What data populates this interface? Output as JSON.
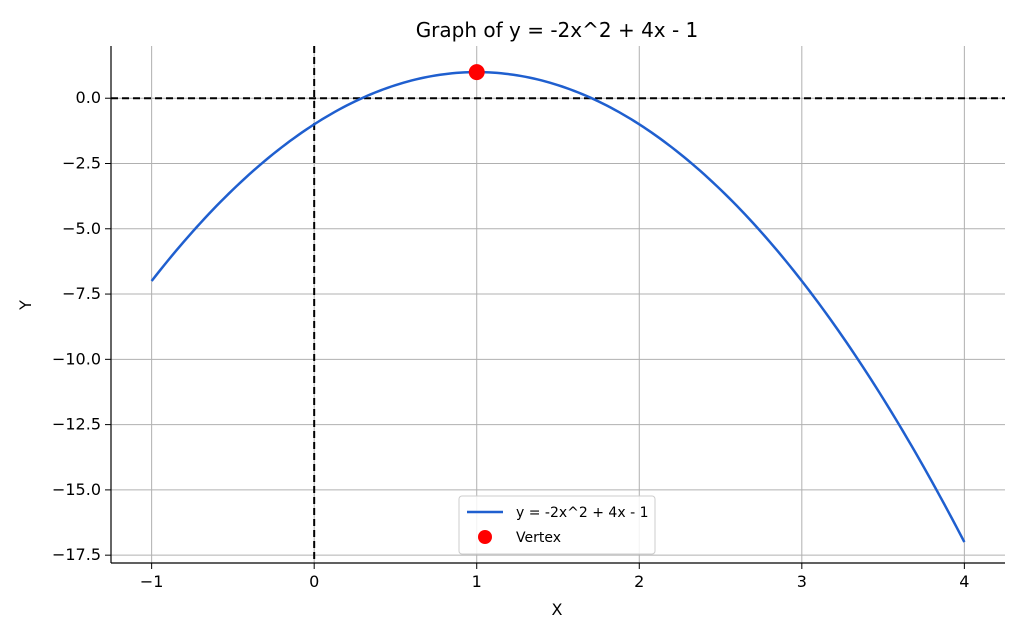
{
  "chart_data": {
    "type": "line",
    "title": "Graph of y = -2x^2 + 4x - 1",
    "xlabel": "X",
    "ylabel": "Y",
    "xlim": [
      -1.25,
      4.25
    ],
    "ylim": [
      -17.8,
      2.0
    ],
    "xticks": [
      -1,
      0,
      1,
      2,
      3,
      4
    ],
    "xtick_labels": [
      "−1",
      "0",
      "1",
      "2",
      "3",
      "4"
    ],
    "yticks": [
      0.0,
      -2.5,
      -5.0,
      -7.5,
      -10.0,
      -12.5,
      -15.0,
      -17.5
    ],
    "ytick_labels": [
      "0.0",
      "−2.5",
      "−5.0",
      "−7.5",
      "−10.0",
      "−12.5",
      "−15.0",
      "−17.5"
    ],
    "grid": true,
    "legend_position": "lower-center",
    "series": [
      {
        "name": "y = -2x^2 + 4x - 1",
        "type": "line",
        "color": "#1f5fcf",
        "equation": {
          "a": -2,
          "b": 4,
          "c": -1
        },
        "x_range": [
          -1,
          4
        ]
      },
      {
        "name": "Vertex",
        "type": "scatter",
        "color": "#ff0000",
        "points": [
          {
            "x": 1,
            "y": 1
          }
        ]
      }
    ],
    "reference_lines": [
      {
        "orientation": "horizontal",
        "value": 0,
        "style": "dashed",
        "color": "#000000"
      },
      {
        "orientation": "vertical",
        "value": 0,
        "style": "dashed",
        "color": "#000000"
      }
    ]
  }
}
